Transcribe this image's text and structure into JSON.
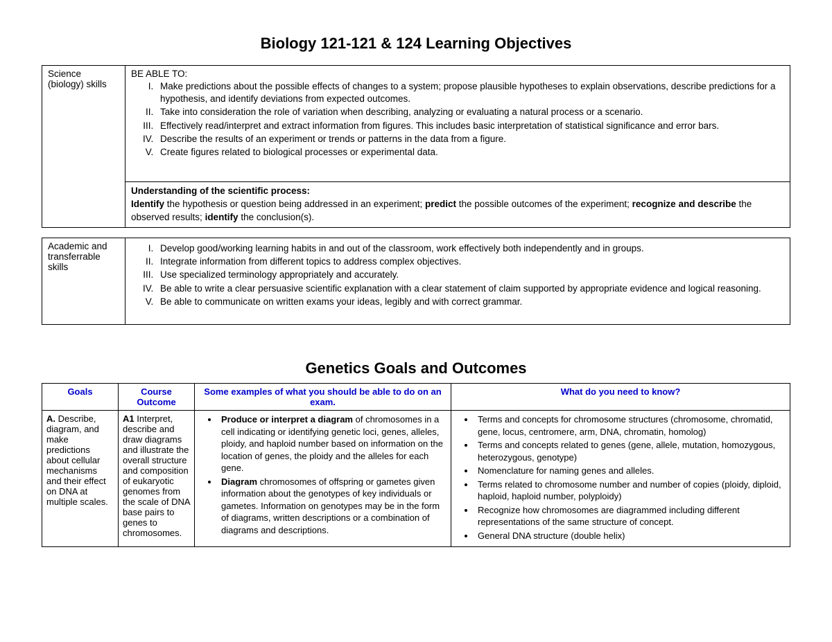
{
  "title1": "Biology 121-121 & 124 Learning Objectives",
  "table1": {
    "row1_label": "Science (biology) skills",
    "row1_intro": "BE ABLE TO:",
    "row1_items": [
      "Make predictions about the possible effects of changes to a system; propose plausible hypotheses to explain observations, describe predictions for a hypothesis, and identify deviations from expected outcomes.",
      "Take into consideration the role of variation when describing, analyzing or evaluating a natural process or a scenario.",
      "Effectively read/interpret and extract information from figures. This includes basic interpretation of statistical significance and error bars.",
      "Describe the results of an experiment or trends or patterns in the data from a figure.",
      "Create figures related to biological processes or experimental data."
    ],
    "row2_heading": "Understanding of the scientific process:",
    "row2_body_parts": [
      {
        "bold": true,
        "text": "Identify"
      },
      {
        "bold": false,
        "text": " the hypothesis or question being addressed in an experiment; "
      },
      {
        "bold": true,
        "text": "predict"
      },
      {
        "bold": false,
        "text": " the possible outcomes of the experiment; "
      },
      {
        "bold": true,
        "text": "recognize and describe"
      },
      {
        "bold": false,
        "text": " the observed results; "
      },
      {
        "bold": true,
        "text": "identify"
      },
      {
        "bold": false,
        "text": " the conclusion(s)."
      }
    ]
  },
  "table2": {
    "label": "Academic and transferrable skills",
    "items": [
      "Develop good/working learning habits in and out of the classroom, work effectively both independently and in groups.",
      "Integrate information from different topics to address complex objectives.",
      "Use specialized terminology appropriately and accurately.",
      "Be able to write a clear persuasive scientific explanation with a clear statement of claim supported by appropriate evidence and logical reasoning.",
      "Be able to communicate on written exams your ideas, legibly and with correct grammar."
    ]
  },
  "title2": "Genetics Goals and Outcomes",
  "genetics_headers": {
    "col1": "Goals",
    "col2": "Course Outcome",
    "col3": "Some examples of what you should be able to do on an exam.",
    "col4": "What do you need to know?"
  },
  "genetics_row": {
    "goals_parts": [
      {
        "bold": true,
        "text": "A."
      },
      {
        "bold": false,
        "text": " Describe, diagram, and make predictions about cellular mechanisms and their effect on DNA at multiple scales."
      }
    ],
    "outcome_parts": [
      {
        "bold": true,
        "text": "A1"
      },
      {
        "bold": false,
        "text": " Interpret, describe and draw diagrams and illustrate the overall structure and composition of eukaryotic genomes from the scale of DNA base pairs to genes to chromosomes."
      }
    ],
    "examples": [
      {
        "bold": "Produce or interpret a diagram",
        "rest": " of chromosomes in a cell indicating or identifying genetic loci, genes, alleles, ploidy, and haploid number based on information on the location of genes, the ploidy and the alleles for each gene."
      },
      {
        "bold": "Diagram",
        "rest": " chromosomes of offspring or gametes given information about the genotypes of key individuals or gametes.  Information on genotypes may be in the form of diagrams, written descriptions or a combination of diagrams and descriptions."
      }
    ],
    "know": [
      "Terms and concepts for chromosome structures (chromosome, chromatid, gene, locus, centromere, arm, DNA, chromatin, homolog)",
      "Terms and concepts related to genes (gene, allele, mutation, homozygous, heterozygous, genotype)",
      "Nomenclature for naming genes and alleles.",
      "Terms related to chromosome number and number of copies (ploidy, diploid, haploid, haploid number, polyploidy)",
      "Recognize how chromosomes are diagrammed including different representations of the same structure of concept.",
      "General DNA structure (double helix)"
    ]
  }
}
